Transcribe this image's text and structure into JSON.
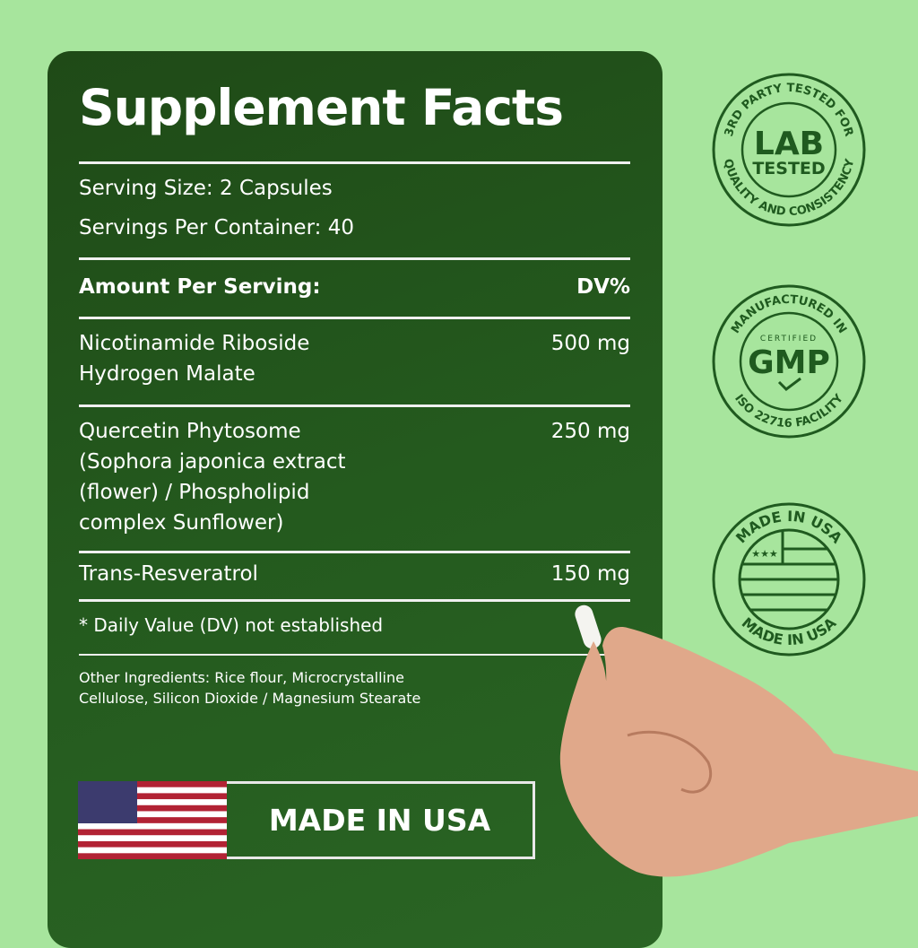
{
  "panel": {
    "title": "Supplement Facts",
    "serving_size": "Serving Size: 2 Capsules",
    "servings_per_container": "Servings Per Container: 40",
    "amount_header": "Amount Per Serving:",
    "dv_header": "DV%",
    "ingredients": [
      {
        "name_lines": [
          "Nicotinamide Riboside",
          "Hydrogen Malate"
        ],
        "amount": "500 mg"
      },
      {
        "name_lines": [
          "Quercetin Phytosome",
          "(Sophora japonica extract",
          "(flower) / Phospholipid",
          "complex Sunflower)"
        ],
        "amount": "250 mg"
      },
      {
        "name_lines": [
          "Trans-Resveratrol"
        ],
        "amount": "150 mg"
      }
    ],
    "footnote": "* Daily Value (DV) not established",
    "other_ingredients": [
      "Other Ingredients: Rice flour, Microcrystalline",
      "Cellulose, Silicon Dioxide / Magnesium Stearate"
    ],
    "made_in_usa": "MADE IN USA"
  },
  "badges": [
    {
      "top": "3RD PARTY TESTED FOR",
      "center": [
        "LAB",
        "TESTED"
      ],
      "bottom": "QUALITY AND CONSISTENCY"
    },
    {
      "top": "MANUFACTURED IN",
      "small": "CERTIFIED",
      "center": [
        "GMP"
      ],
      "bottom": "ISO 22716 FACILITY"
    },
    {
      "top": "MADE IN USA",
      "bottom": "MADE IN USA"
    }
  ],
  "colors": {
    "background": "#a7e59d",
    "panel": "#245a1e",
    "badge": "#1f5a1f",
    "text": "#ffffff"
  }
}
